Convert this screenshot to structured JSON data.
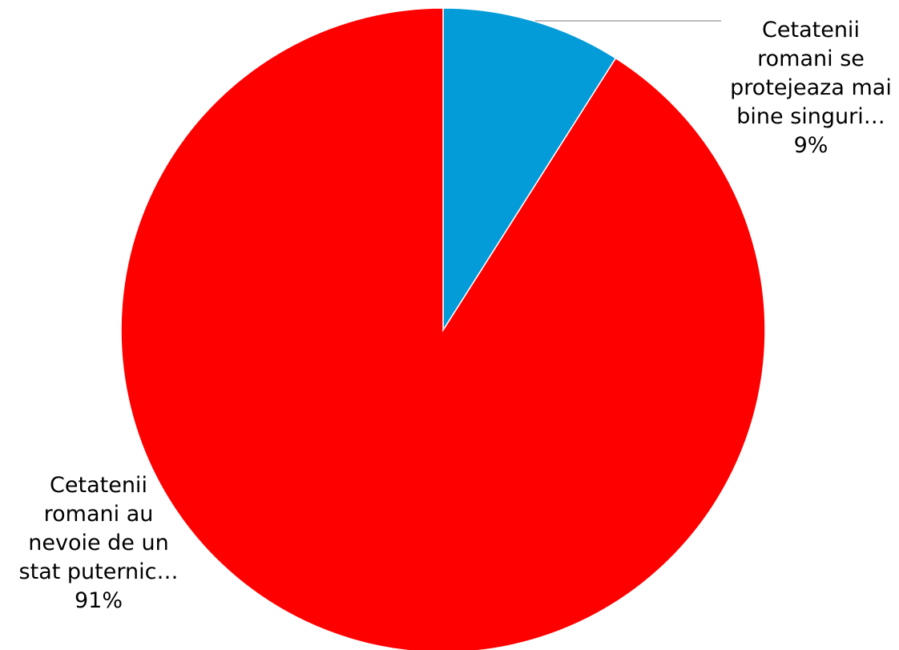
{
  "chart_data": {
    "type": "pie",
    "title": "",
    "start_angle_deg": 0,
    "direction": "clockwise",
    "slices": [
      {
        "label_lines": [
          "Cetatenii",
          "romani se",
          "protejeaza mai",
          "bine singuri…"
        ],
        "percent_label": "9%",
        "value": 9,
        "color": "#039cd8"
      },
      {
        "label_lines": [
          "Cetatenii",
          "romani au",
          "nevoie de un",
          "stat puternic…"
        ],
        "percent_label": "91%",
        "value": 91,
        "color": "#ff0000"
      }
    ],
    "leader_line_color": "#a6a6a6",
    "legend": "none"
  }
}
